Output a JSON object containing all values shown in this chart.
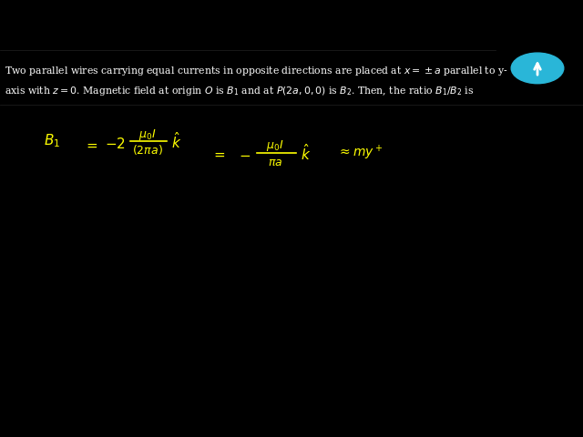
{
  "bg_color": "#000000",
  "text_color": "#ffffff",
  "yellow_color": "#ffff00",
  "toppr_bg": "#ffffff",
  "toppr_circle_color": "#29b6d8",
  "q_line1": "Two parallel wires carrying equal currents in opposite directions are placed at $x = \\pm a$ parallel to y-",
  "q_line2": "axis with $z = 0$. Magnetic field at origin $O$ is $B_1$ and at $P(2a, 0, 0)$ is $B_2$. Then, the ratio $B_1/B_2$ is",
  "fig_width": 6.4,
  "fig_height": 4.8,
  "dpi": 100
}
